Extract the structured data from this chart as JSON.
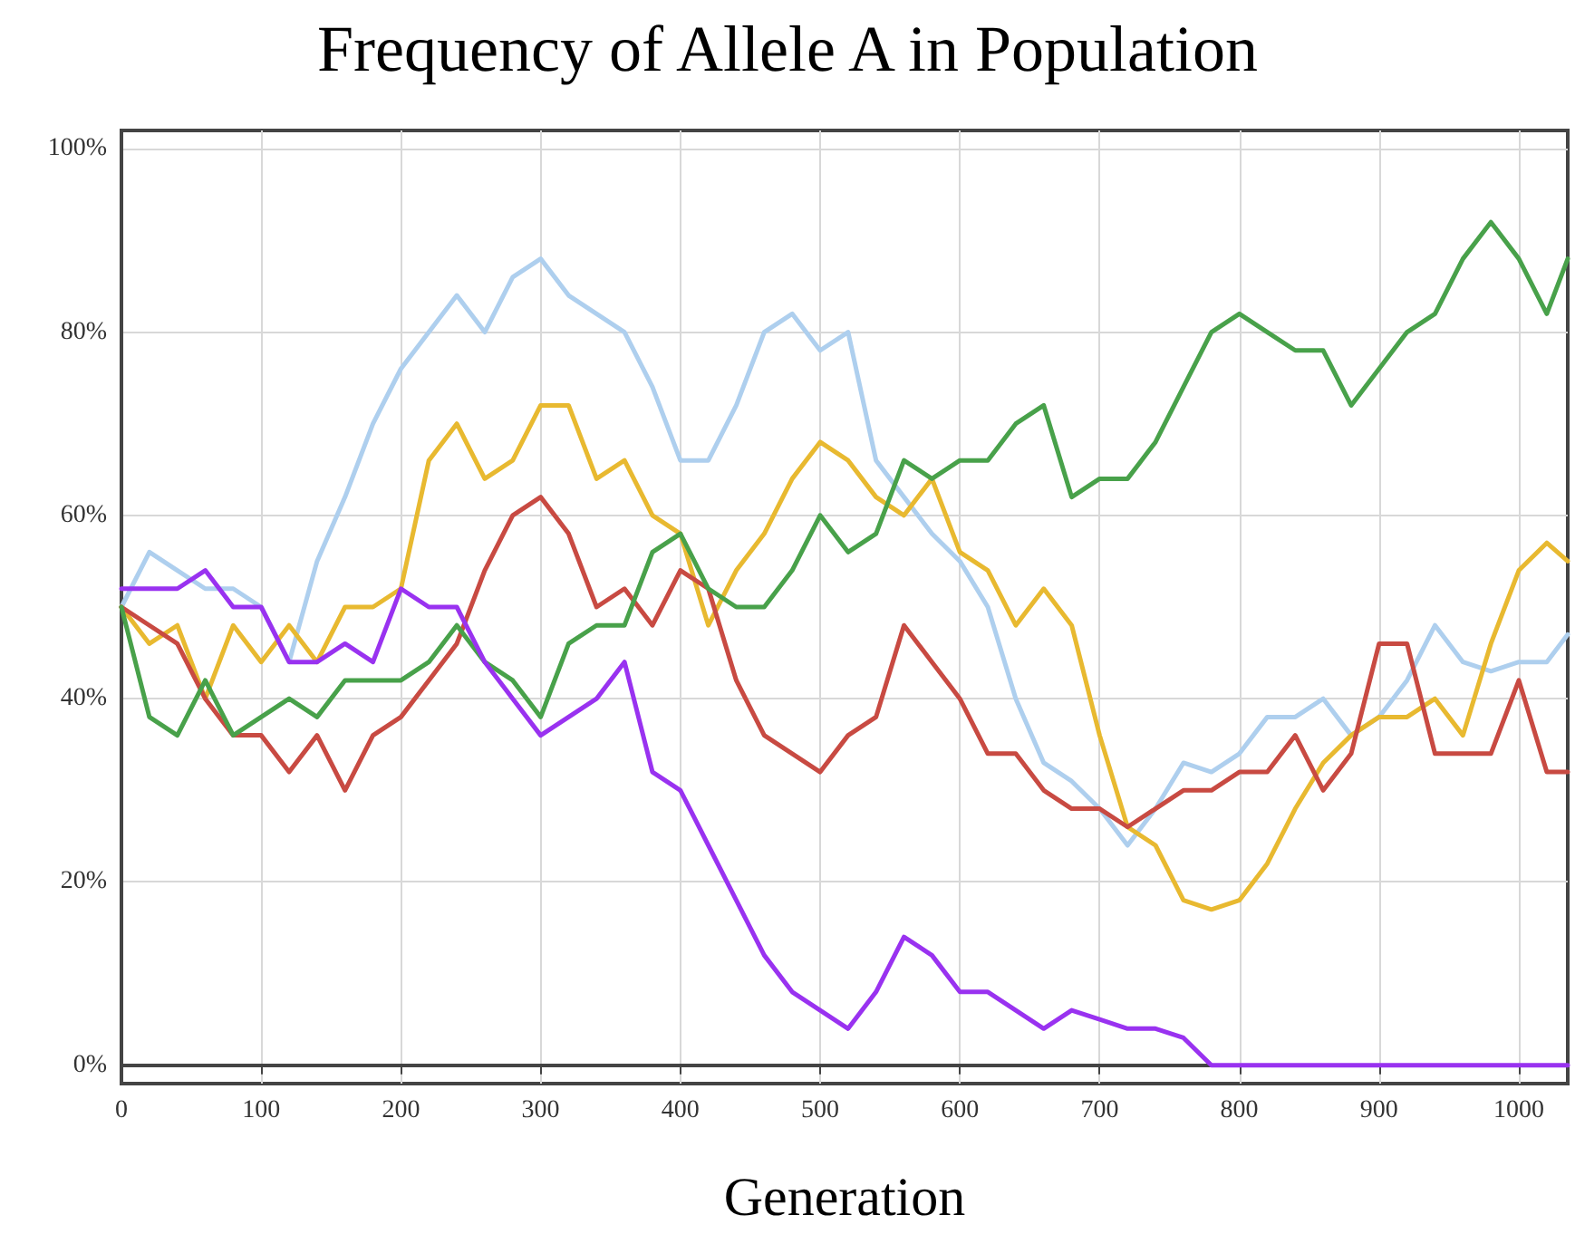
{
  "chart_data": {
    "type": "line",
    "title": "Frequency of Allele A in Population",
    "xlabel": "Generation",
    "x": [
      0,
      20,
      40,
      60,
      80,
      100,
      120,
      140,
      160,
      180,
      200,
      220,
      240,
      260,
      280,
      300,
      320,
      340,
      360,
      380,
      400,
      420,
      440,
      460,
      480,
      500,
      520,
      540,
      560,
      580,
      600,
      620,
      640,
      660,
      680,
      700,
      720,
      740,
      760,
      780,
      800,
      820,
      840,
      860,
      880,
      900,
      920,
      940,
      960,
      980,
      1000,
      1020,
      1035
    ],
    "series": [
      {
        "color": "#aecfee",
        "values": [
          50,
          56,
          54,
          52,
          52,
          50,
          44,
          55,
          62,
          70,
          76,
          80,
          84,
          80,
          86,
          88,
          84,
          82,
          80,
          74,
          66,
          66,
          72,
          80,
          82,
          78,
          80,
          66,
          62,
          58,
          55,
          50,
          40,
          33,
          31,
          28,
          24,
          28,
          33,
          32,
          34,
          38,
          38,
          40,
          36,
          38,
          42,
          48,
          44,
          43,
          44,
          44,
          47
        ]
      },
      {
        "color": "#e8b930",
        "values": [
          50,
          46,
          48,
          40,
          48,
          44,
          48,
          44,
          50,
          50,
          52,
          66,
          70,
          64,
          66,
          72,
          72,
          64,
          66,
          60,
          58,
          48,
          54,
          58,
          64,
          68,
          66,
          62,
          60,
          64,
          56,
          54,
          48,
          52,
          48,
          36,
          26,
          24,
          18,
          17,
          18,
          22,
          28,
          33,
          36,
          38,
          38,
          40,
          36,
          46,
          54,
          57,
          55
        ]
      },
      {
        "color": "#c84a42",
        "values": [
          50,
          48,
          46,
          40,
          36,
          36,
          32,
          36,
          30,
          36,
          38,
          42,
          46,
          54,
          60,
          62,
          58,
          50,
          52,
          48,
          54,
          52,
          42,
          36,
          34,
          32,
          36,
          38,
          48,
          44,
          40,
          34,
          34,
          30,
          28,
          28,
          26,
          28,
          30,
          30,
          32,
          32,
          36,
          30,
          34,
          46,
          46,
          34,
          34,
          34,
          42,
          32,
          32
        ]
      },
      {
        "color": "#48a14a",
        "values": [
          50,
          38,
          36,
          42,
          36,
          38,
          40,
          38,
          42,
          42,
          42,
          44,
          48,
          44,
          42,
          38,
          46,
          48,
          48,
          56,
          58,
          52,
          50,
          50,
          54,
          60,
          56,
          58,
          66,
          64,
          66,
          66,
          70,
          72,
          62,
          64,
          64,
          68,
          74,
          80,
          82,
          80,
          78,
          78,
          72,
          76,
          80,
          82,
          88,
          92,
          88,
          82,
          88
        ]
      },
      {
        "color": "#9932f0",
        "values": [
          52,
          52,
          52,
          54,
          50,
          50,
          44,
          44,
          46,
          44,
          52,
          50,
          50,
          44,
          40,
          36,
          38,
          40,
          44,
          32,
          30,
          24,
          18,
          12,
          8,
          6,
          4,
          8,
          14,
          12,
          8,
          8,
          6,
          4,
          6,
          5,
          4,
          4,
          3,
          0,
          0,
          0,
          0,
          0,
          0,
          0,
          0,
          0,
          0,
          0,
          0,
          0,
          0
        ]
      }
    ],
    "xlim": [
      0,
      1035
    ],
    "xticks": [
      0,
      100,
      200,
      300,
      400,
      500,
      600,
      700,
      800,
      900,
      1000
    ],
    "ylim": [
      -2,
      102
    ],
    "yticks": [
      {
        "value": 0,
        "label": "0%"
      },
      {
        "value": 20,
        "label": "20%"
      },
      {
        "value": 40,
        "label": "40%"
      },
      {
        "value": 60,
        "label": "60%"
      },
      {
        "value": 80,
        "label": "80%"
      },
      {
        "value": 100,
        "label": "100%"
      }
    ],
    "grid": true,
    "marker": "none",
    "line_style": "solid"
  }
}
